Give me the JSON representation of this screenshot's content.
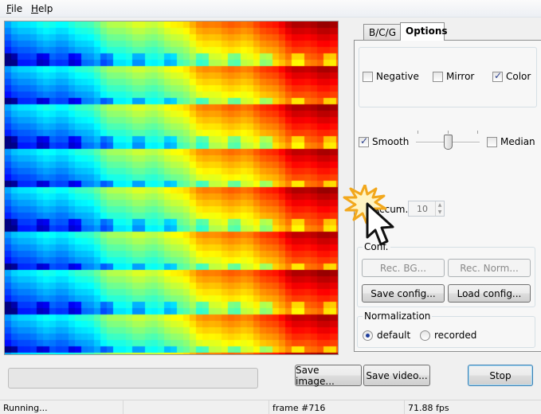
{
  "menu": {
    "file": "File",
    "help": "Help"
  },
  "tabs": [
    {
      "label": "B/C/G"
    },
    {
      "label": "Options"
    }
  ],
  "options": {
    "negative": {
      "label": "Negative",
      "checked": false
    },
    "mirror": {
      "label": "Mirror",
      "checked": false
    },
    "color": {
      "label": "Color",
      "checked": true
    },
    "smooth": {
      "label": "Smooth",
      "checked": true
    },
    "median": {
      "label": "Median",
      "checked": false
    },
    "accum": {
      "label": "Accum.",
      "checked": false,
      "value": "10"
    }
  },
  "config": {
    "title": "Conf.",
    "rec_bg": "Rec. BG...",
    "rec_norm": "Rec. Norm...",
    "save_config": "Save config...",
    "load_config": "Load config..."
  },
  "normalization": {
    "title": "Normalization",
    "default": "default",
    "recorded": "recorded",
    "selected": "default"
  },
  "buttons": {
    "save_image": "Save image...",
    "save_video": "Save video...",
    "stop": "Stop"
  },
  "status": {
    "state": "Running...",
    "frame": "frame #716",
    "fps": "71.88 fps"
  },
  "icons": {
    "cursor": "click-cursor-icon"
  },
  "colors": {
    "focus_border": "#3c7fb1",
    "check": "#2a3f8c"
  }
}
